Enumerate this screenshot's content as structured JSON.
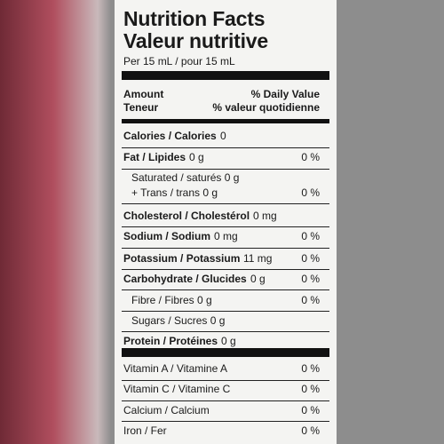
{
  "label": {
    "title_en": "Nutrition Facts",
    "title_fr": "Valeur nutritive",
    "serving": "Per 15 mL / pour 15 mL",
    "amount_en": "Amount",
    "amount_fr": "Teneur",
    "dv_en": "% Daily Value",
    "dv_fr": "% valeur quotidienne",
    "rows": [
      {
        "label": "Calories / Calories",
        "amount": "0",
        "dv": "",
        "bold": true
      },
      {
        "label": "Fat / Lipides",
        "amount": "0 g",
        "dv": "0 %",
        "bold": true
      },
      {
        "label": "Saturated / saturés 0 g",
        "amount": "",
        "dv": "",
        "bold": false
      },
      {
        "label": "+ Trans / trans 0 g",
        "amount": "",
        "dv": "0 %",
        "bold": false
      },
      {
        "label": "Cholesterol / Cholestérol",
        "amount": "0 mg",
        "dv": "",
        "bold": true
      },
      {
        "label": "Sodium / Sodium",
        "amount": "0 mg",
        "dv": "0 %",
        "bold": true
      },
      {
        "label": "Potassium / Potassium",
        "amount": "11 mg",
        "dv": "0 %",
        "bold": true
      },
      {
        "label": "Carbohydrate / Glucides",
        "amount": "0 g",
        "dv": "0 %",
        "bold": true
      },
      {
        "label": "Fibre / Fibres 0 g",
        "amount": "",
        "dv": "0 %",
        "bold": false
      },
      {
        "label": "Sugars / Sucres 0 g",
        "amount": "",
        "dv": "",
        "bold": false
      },
      {
        "label": "Protein / Protéines",
        "amount": "0 g",
        "dv": "",
        "bold": true
      },
      {
        "label": "Vitamin A / Vitamine A",
        "amount": "",
        "dv": "0 %",
        "bold": false
      },
      {
        "label": "Vitamin C / Vitamine C",
        "amount": "",
        "dv": "0 %",
        "bold": false
      },
      {
        "label": "Calcium / Calcium",
        "amount": "",
        "dv": "0 %",
        "bold": false
      },
      {
        "label": "Iron / Fer",
        "amount": "",
        "dv": "0 %",
        "bold": false
      }
    ]
  }
}
